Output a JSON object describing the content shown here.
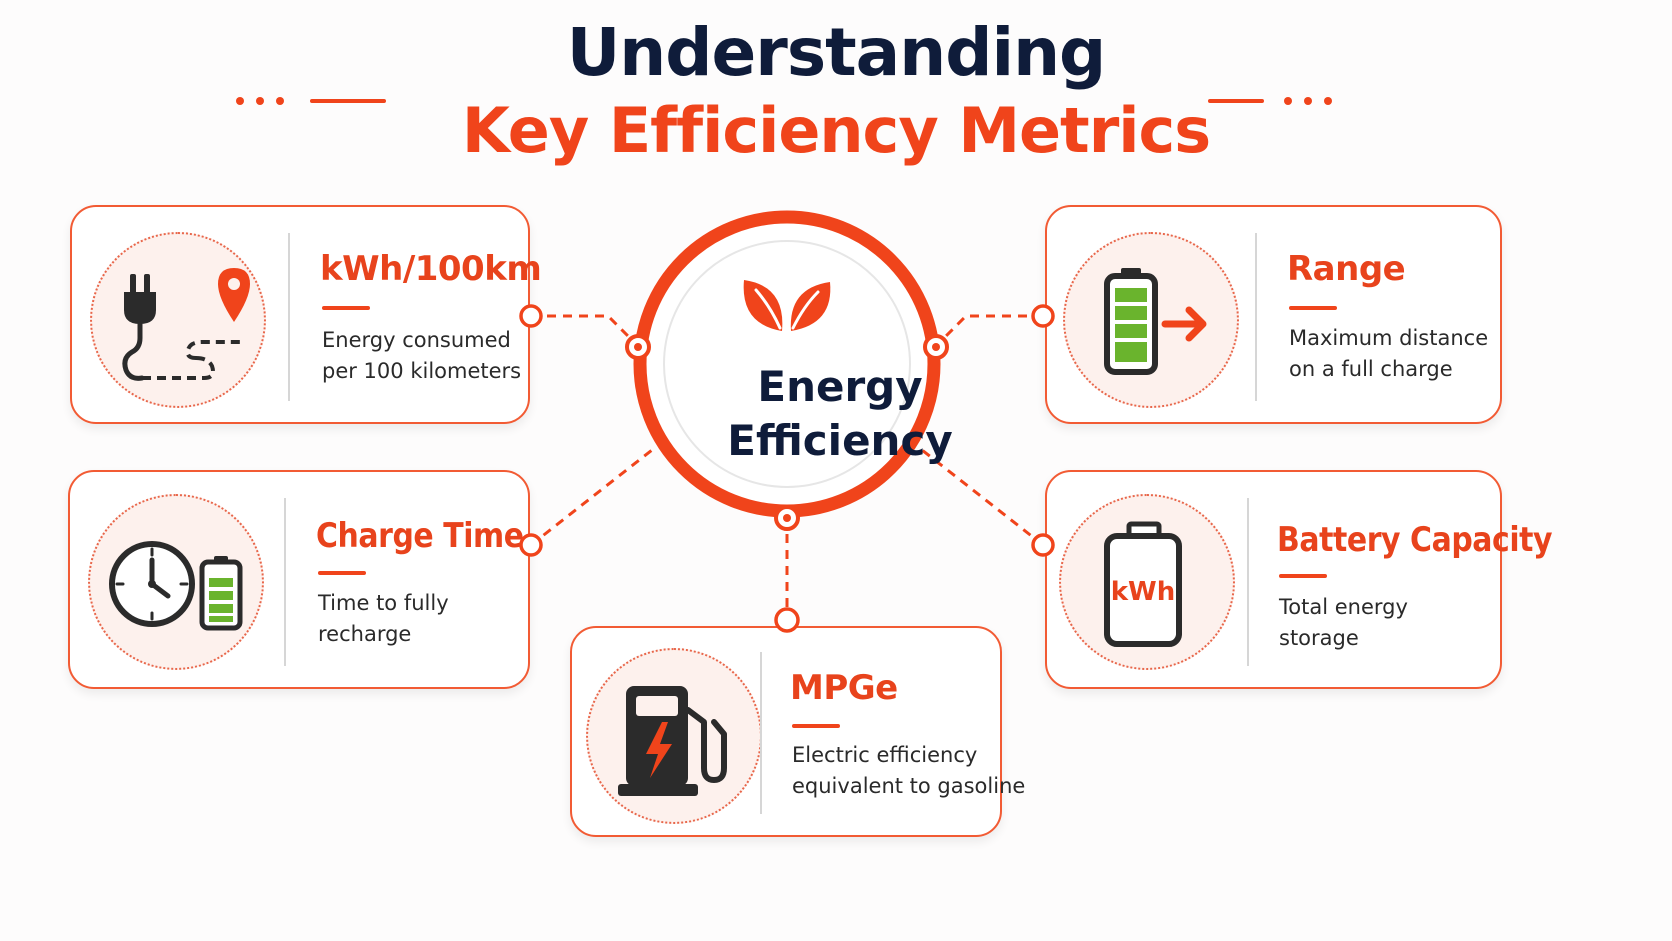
{
  "title": {
    "line1": "Understanding",
    "line2": "Key Efficiency Metrics"
  },
  "hub": {
    "line1": "Energy",
    "line2": "Efficiency",
    "icon": "leaves-icon"
  },
  "metrics": [
    {
      "id": "kwh-per-100km",
      "title": "kWh/100km",
      "desc_line1": "Energy consumed",
      "desc_line2": "per 100 kilometers",
      "icon": "plug-route-icon"
    },
    {
      "id": "charge-time",
      "title": "Charge Time",
      "desc_line1": "Time to fully",
      "desc_line2": "recharge",
      "icon": "clock-battery-icon"
    },
    {
      "id": "mpge",
      "title": "MPGe",
      "desc_line1": "Electric efficiency",
      "desc_line2": "equivalent to gasoline",
      "icon": "fuel-pump-icon"
    },
    {
      "id": "range",
      "title": "Range",
      "desc_line1": "Maximum distance",
      "desc_line2": "on a full charge",
      "icon": "battery-arrow-icon"
    },
    {
      "id": "battery-capacity",
      "title": "Battery Capacity",
      "desc_line1": "Total energy",
      "desc_line2": "storage",
      "icon": "battery-kwh-icon",
      "icon_text": "kWh"
    }
  ],
  "colors": {
    "accent": "#f0441b",
    "navy": "#0f1c3a",
    "battery_green": "#6ab42d",
    "icon_dark": "#2b2b2b"
  }
}
